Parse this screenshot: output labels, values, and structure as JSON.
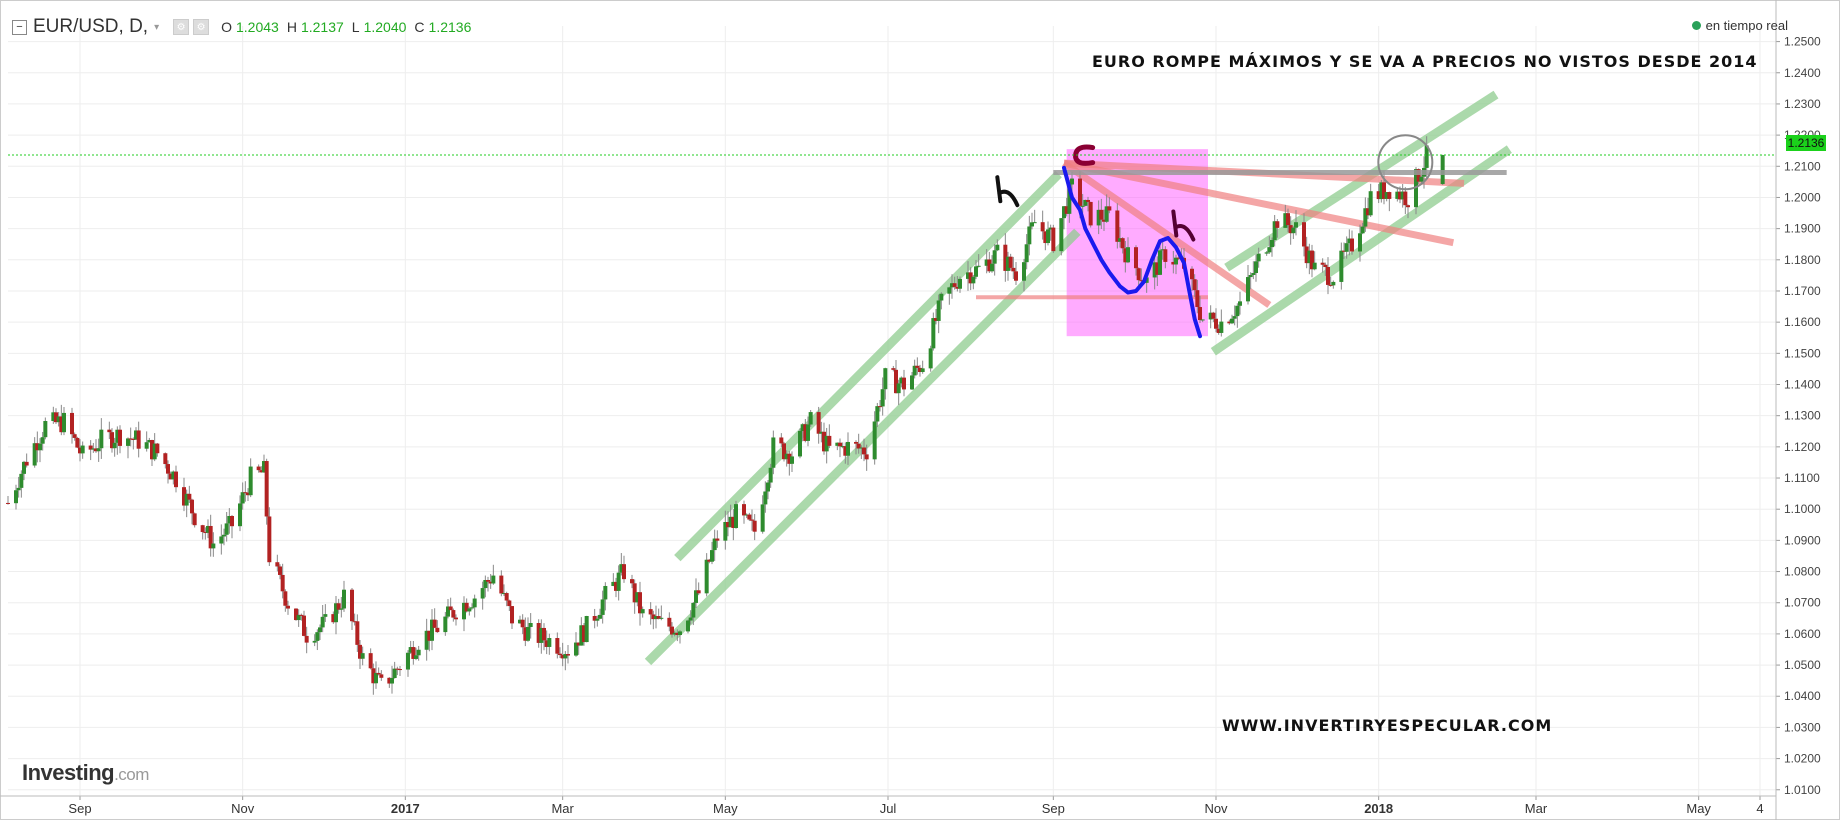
{
  "header": {
    "collapse_icon": "minus-square-icon",
    "symbol": "EUR/USD, D,",
    "caret": "▾",
    "settings_icon": "gear-icon",
    "o_label": "O",
    "o_value": "1.2043",
    "h_label": "H",
    "h_value": "1.2137",
    "l_label": "L",
    "l_value": "1.2040",
    "c_label": "C",
    "c_value": "1.2136"
  },
  "status": {
    "text": "en tiempo real",
    "color": "#2aa15a"
  },
  "annotation_title": "EURO ROMPE MÁXIMOS Y SE VA A PRECIOS NO VISTOS DESDE 2014",
  "annotation_website": "WWW.INVERTIRYESPECULAR.COM",
  "logo": {
    "main": "Investing",
    "suffix": ".com"
  },
  "colors": {
    "bull": "#2e8b2e",
    "bear": "#b22222",
    "last_price_line": "#22cc22",
    "channel_green": "#8fcc8f",
    "trend_pink": "#f08080",
    "zone_magenta": "#ff44ff",
    "blue_path": "#1a1aee",
    "grid": "#eeeeee"
  },
  "chart_data": {
    "type": "candlestick",
    "title": "EUR/USD, D,",
    "y_ticks": [
      "1.2500",
      "1.2400",
      "1.2300",
      "1.2200",
      "1.2100",
      "1.2000",
      "1.1900",
      "1.1800",
      "1.1700",
      "1.1600",
      "1.1500",
      "1.1400",
      "1.1300",
      "1.1200",
      "1.1100",
      "1.1000",
      "1.0900",
      "1.0800",
      "1.0700",
      "1.0600",
      "1.0500",
      "1.0400",
      "1.0300",
      "1.0200",
      "1.0100"
    ],
    "ylim": [
      1.008,
      1.255
    ],
    "x_ticks": [
      "Sep",
      "Nov",
      "2017",
      "Mar",
      "May",
      "Jul",
      "Sep",
      "Nov",
      "2018",
      "Mar",
      "May",
      "4"
    ],
    "xlim": [
      "2016-08-05",
      "2018-05-30"
    ],
    "last_price_label": "1.2136",
    "last_price": 1.2136,
    "close_path": [
      [
        "2016-08-05",
        1.102
      ],
      [
        "2016-08-12",
        1.116
      ],
      [
        "2016-08-19",
        1.127
      ],
      [
        "2016-08-26",
        1.128
      ],
      [
        "2016-09-02",
        1.117
      ],
      [
        "2016-09-09",
        1.122
      ],
      [
        "2016-09-16",
        1.124
      ],
      [
        "2016-09-23",
        1.122
      ],
      [
        "2016-09-30",
        1.118
      ],
      [
        "2016-10-07",
        1.11
      ],
      [
        "2016-10-14",
        1.098
      ],
      [
        "2016-10-21",
        1.089
      ],
      [
        "2016-10-28",
        1.095
      ],
      [
        "2016-11-04",
        1.11
      ],
      [
        "2016-11-09",
        1.112
      ],
      [
        "2016-11-11",
        1.085
      ],
      [
        "2016-11-18",
        1.07
      ],
      [
        "2016-11-25",
        1.06
      ],
      [
        "2016-12-02",
        1.063
      ],
      [
        "2016-12-09",
        1.072
      ],
      [
        "2016-12-16",
        1.052
      ],
      [
        "2016-12-23",
        1.043
      ],
      [
        "2016-12-30",
        1.05
      ],
      [
        "2017-01-06",
        1.058
      ],
      [
        "2017-01-13",
        1.062
      ],
      [
        "2017-01-20",
        1.068
      ],
      [
        "2017-01-27",
        1.072
      ],
      [
        "2017-02-03",
        1.079
      ],
      [
        "2017-02-10",
        1.065
      ],
      [
        "2017-02-17",
        1.06
      ],
      [
        "2017-02-24",
        1.058
      ],
      [
        "2017-03-03",
        1.055
      ],
      [
        "2017-03-10",
        1.062
      ],
      [
        "2017-03-17",
        1.072
      ],
      [
        "2017-03-24",
        1.08
      ],
      [
        "2017-03-31",
        1.066
      ],
      [
        "2017-04-07",
        1.063
      ],
      [
        "2017-04-14",
        1.062
      ],
      [
        "2017-04-21",
        1.073
      ],
      [
        "2017-04-28",
        1.091
      ],
      [
        "2017-05-05",
        1.098
      ],
      [
        "2017-05-12",
        1.093
      ],
      [
        "2017-05-19",
        1.12
      ],
      [
        "2017-05-26",
        1.118
      ],
      [
        "2017-06-02",
        1.128
      ],
      [
        "2017-06-09",
        1.119
      ],
      [
        "2017-06-16",
        1.12
      ],
      [
        "2017-06-23",
        1.119
      ],
      [
        "2017-06-30",
        1.142
      ],
      [
        "2017-07-07",
        1.14
      ],
      [
        "2017-07-14",
        1.147
      ],
      [
        "2017-07-21",
        1.166
      ],
      [
        "2017-07-28",
        1.175
      ],
      [
        "2017-08-04",
        1.177
      ],
      [
        "2017-08-11",
        1.182
      ],
      [
        "2017-08-18",
        1.176
      ],
      [
        "2017-08-25",
        1.192
      ],
      [
        "2017-09-01",
        1.186
      ],
      [
        "2017-09-08",
        1.203
      ],
      [
        "2017-09-15",
        1.194
      ],
      [
        "2017-09-22",
        1.194
      ],
      [
        "2017-09-29",
        1.181
      ],
      [
        "2017-10-06",
        1.173
      ],
      [
        "2017-10-13",
        1.182
      ],
      [
        "2017-10-20",
        1.178
      ],
      [
        "2017-10-27",
        1.161
      ],
      [
        "2017-11-03",
        1.16
      ],
      [
        "2017-11-10",
        1.166
      ],
      [
        "2017-11-17",
        1.18
      ],
      [
        "2017-11-24",
        1.193
      ],
      [
        "2017-12-01",
        1.19
      ],
      [
        "2017-12-08",
        1.177
      ],
      [
        "2017-12-15",
        1.175
      ],
      [
        "2017-12-22",
        1.185
      ],
      [
        "2017-12-29",
        1.2
      ],
      [
        "2018-01-05",
        1.203
      ],
      [
        "2018-01-12",
        1.2
      ],
      [
        "2018-01-19",
        1.213
      ]
    ]
  }
}
